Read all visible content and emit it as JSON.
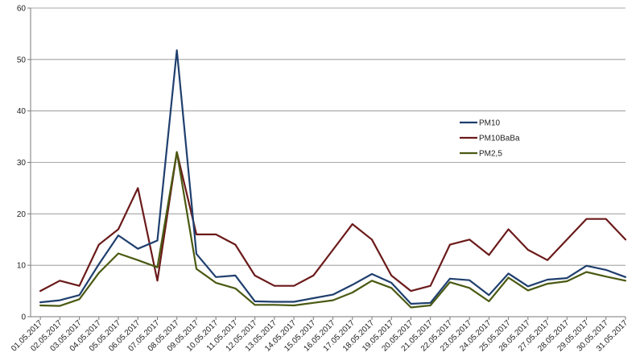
{
  "chart_data": {
    "type": "line",
    "title": "",
    "xlabel": "",
    "ylabel": "",
    "ylim": [
      0,
      60
    ],
    "yticks": [
      0,
      10,
      20,
      30,
      40,
      50,
      60
    ],
    "grid": true,
    "legend_position": "right",
    "categories": [
      "01.05.2017",
      "02.05.2017",
      "03.05.2017",
      "04.05.2017",
      "05.05.2017",
      "06.05.2017",
      "07.05.2017",
      "08.05.2017",
      "09.05.2017",
      "10.05.2017",
      "11.05.2017",
      "12.05.2017",
      "13.05.2017",
      "14.05.2017",
      "15.05.2017",
      "16.05.2017",
      "17.05.2017",
      "18.05.2017",
      "19.05.2017",
      "20.05.2017",
      "21.05.2017",
      "22.05.2017",
      "23.05.2017",
      "24.05.2017",
      "25.05.2017",
      "26.05.2017",
      "27.05.2017",
      "28.05.2017",
      "29.05.2017",
      "30.05.2017",
      "31.05.2017"
    ],
    "series": [
      {
        "name": "PM10",
        "color": "#1f3f6e",
        "values": [
          2.8,
          3.2,
          4.2,
          10.2,
          15.8,
          13.2,
          14.8,
          51.8,
          12.2,
          7.7,
          8.0,
          3.0,
          2.9,
          2.9,
          3.6,
          4.3,
          6.2,
          8.3,
          6.6,
          2.5,
          2.7,
          7.4,
          7.1,
          4.2,
          8.4,
          5.9,
          7.2,
          7.5,
          9.9,
          9.1,
          7.7
        ]
      },
      {
        "name": "PM10BaBa",
        "color": "#6b1a1a",
        "values": [
          5,
          7,
          6,
          14,
          17,
          25,
          7,
          32,
          16,
          16,
          14,
          8,
          6,
          6,
          8,
          13,
          18,
          15,
          8,
          5,
          6,
          14,
          15,
          12,
          17,
          13,
          11,
          15,
          19,
          19,
          15
        ]
      },
      {
        "name": "PM2,5",
        "color": "#4a5a12",
        "values": [
          2.2,
          2.1,
          3.4,
          8.5,
          12.3,
          11.0,
          9.6,
          32.0,
          9.3,
          6.6,
          5.5,
          2.3,
          2.3,
          2.2,
          2.7,
          3.2,
          4.7,
          7.0,
          5.6,
          1.8,
          2.2,
          6.7,
          5.6,
          3.0,
          7.6,
          5.1,
          6.4,
          6.9,
          8.7,
          7.8,
          7.0
        ]
      }
    ]
  }
}
